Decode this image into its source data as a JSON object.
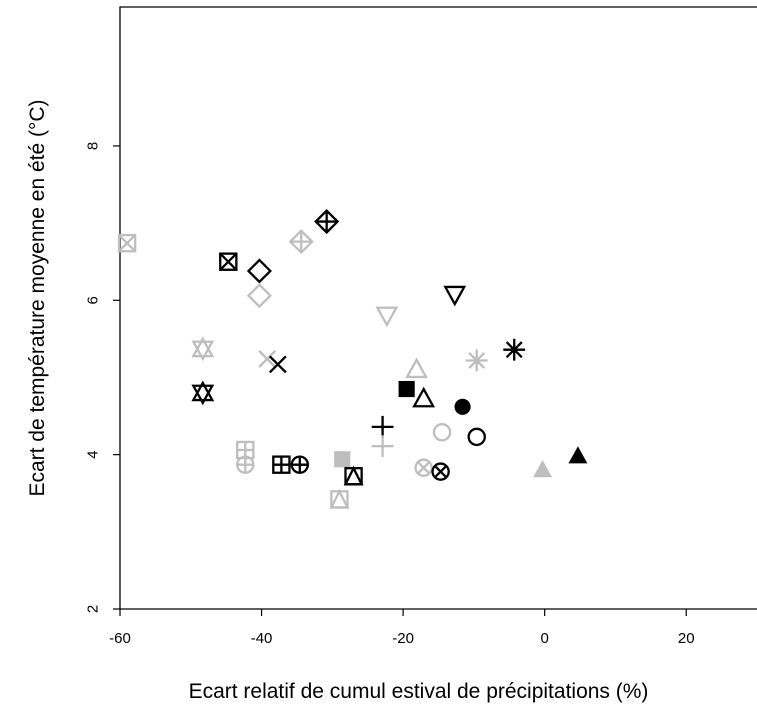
{
  "chart_data": {
    "type": "scatter",
    "title": "",
    "xlabel": "Ecart relatif de cumul estival de précipitations (%)",
    "ylabel": "Ecart de température moyenne en été (°C)",
    "xlim": [
      -60,
      30
    ],
    "ylim": [
      2,
      9.8
    ],
    "xticks": [
      -60,
      -40,
      -20,
      0,
      20
    ],
    "yticks": [
      2,
      4,
      6,
      8
    ],
    "grid": false,
    "legend": "none",
    "colors": {
      "black": "#000000",
      "gray": "#bebebe"
    },
    "points": [
      {
        "x": -59,
        "y": 6.74,
        "symbol": "square-x",
        "color": "gray"
      },
      {
        "x": -44.7,
        "y": 6.5,
        "symbol": "square-x",
        "color": "black"
      },
      {
        "x": -40.3,
        "y": 6.38,
        "symbol": "diamond",
        "color": "black"
      },
      {
        "x": -40.3,
        "y": 6.06,
        "symbol": "diamond",
        "color": "gray"
      },
      {
        "x": -34.4,
        "y": 6.76,
        "symbol": "diamond-plus",
        "color": "gray"
      },
      {
        "x": -30.8,
        "y": 7.02,
        "symbol": "diamond-plus",
        "color": "black"
      },
      {
        "x": -48.3,
        "y": 5.37,
        "symbol": "star-of-david",
        "color": "gray"
      },
      {
        "x": -48.3,
        "y": 4.8,
        "symbol": "star-of-david",
        "color": "black"
      },
      {
        "x": -39.2,
        "y": 5.24,
        "symbol": "cross",
        "color": "gray"
      },
      {
        "x": -37.7,
        "y": 5.17,
        "symbol": "cross",
        "color": "black"
      },
      {
        "x": -42.3,
        "y": 4.06,
        "symbol": "square-plus",
        "color": "gray"
      },
      {
        "x": -42.3,
        "y": 3.87,
        "symbol": "circle-plus",
        "color": "gray"
      },
      {
        "x": -37.2,
        "y": 3.87,
        "symbol": "square-plus",
        "color": "black"
      },
      {
        "x": -34.6,
        "y": 3.87,
        "symbol": "circle-plus",
        "color": "black"
      },
      {
        "x": -28.6,
        "y": 3.94,
        "symbol": "square-filled",
        "color": "gray"
      },
      {
        "x": -29,
        "y": 3.42,
        "symbol": "square-triangle",
        "color": "gray"
      },
      {
        "x": -27,
        "y": 3.72,
        "symbol": "square-triangle",
        "color": "black"
      },
      {
        "x": -22.3,
        "y": 5.81,
        "symbol": "triangle-down",
        "color": "gray"
      },
      {
        "x": -12.7,
        "y": 6.08,
        "symbol": "triangle-down",
        "color": "black"
      },
      {
        "x": -22.9,
        "y": 4.36,
        "symbol": "plus",
        "color": "black"
      },
      {
        "x": -22.9,
        "y": 4.11,
        "symbol": "plus",
        "color": "gray"
      },
      {
        "x": -19.5,
        "y": 4.85,
        "symbol": "square-filled",
        "color": "black"
      },
      {
        "x": -18.1,
        "y": 5.1,
        "symbol": "triangle-up",
        "color": "gray"
      },
      {
        "x": -17.1,
        "y": 4.72,
        "symbol": "triangle-up",
        "color": "black"
      },
      {
        "x": -17.1,
        "y": 3.83,
        "symbol": "circle-x",
        "color": "gray"
      },
      {
        "x": -14.7,
        "y": 3.78,
        "symbol": "circle-x",
        "color": "black"
      },
      {
        "x": -14.5,
        "y": 4.29,
        "symbol": "circle",
        "color": "gray"
      },
      {
        "x": -11.6,
        "y": 4.62,
        "symbol": "circle-filled",
        "color": "black"
      },
      {
        "x": -9.6,
        "y": 4.23,
        "symbol": "circle",
        "color": "black"
      },
      {
        "x": -9.6,
        "y": 5.22,
        "symbol": "asterisk",
        "color": "gray"
      },
      {
        "x": -4.3,
        "y": 5.36,
        "symbol": "asterisk",
        "color": "black"
      },
      {
        "x": -0.3,
        "y": 3.8,
        "symbol": "triangle-filled",
        "color": "gray"
      },
      {
        "x": 4.7,
        "y": 3.98,
        "symbol": "triangle-filled",
        "color": "black"
      }
    ]
  }
}
